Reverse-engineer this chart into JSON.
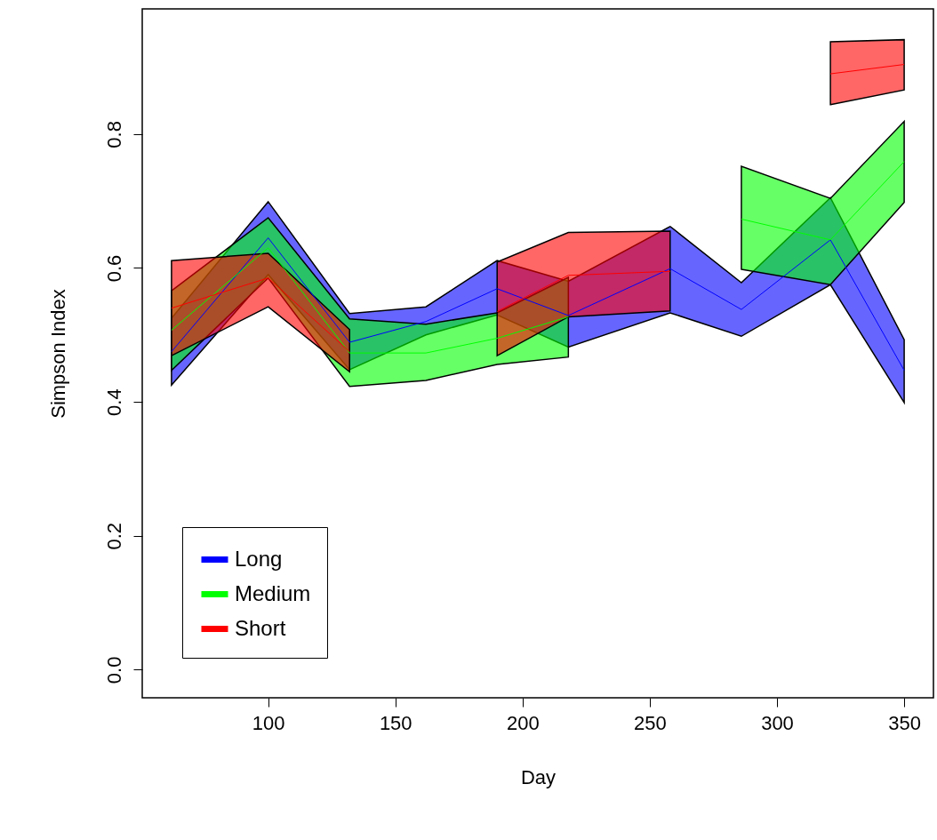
{
  "chart_data": {
    "type": "line",
    "xlabel": "Day",
    "ylabel": "Simpson Index",
    "x": [
      62,
      100,
      132,
      162,
      190,
      218,
      258,
      286,
      321,
      350
    ],
    "series": [
      {
        "name": "Long",
        "color": "#0000ff",
        "values": [
          0.475,
          0.645,
          0.489,
          0.52,
          0.569,
          0.529,
          0.599,
          0.538,
          0.642,
          0.447
        ],
        "lower": [
          0.425,
          0.59,
          0.448,
          0.5,
          0.53,
          0.482,
          0.533,
          0.498,
          0.575,
          0.399
        ],
        "upper": [
          0.525,
          0.699,
          0.532,
          0.542,
          0.611,
          0.58,
          0.662,
          0.578,
          0.705,
          0.493
        ]
      },
      {
        "name": "Medium",
        "color": "#00ff00",
        "values": [
          0.507,
          0.63,
          0.473,
          0.473,
          0.495,
          0.527,
          null,
          0.673,
          0.642,
          0.759
        ],
        "lower": [
          0.447,
          0.585,
          0.423,
          0.432,
          0.456,
          0.467,
          null,
          0.598,
          0.575,
          0.698
        ],
        "upper": [
          0.566,
          0.675,
          0.524,
          0.516,
          0.533,
          0.586,
          null,
          0.752,
          0.704,
          0.819
        ]
      },
      {
        "name": "Short",
        "color": "#ff0000",
        "values": [
          0.54,
          0.585,
          0.475,
          null,
          0.535,
          0.589,
          0.595,
          null,
          0.89,
          0.904
        ],
        "lower": [
          0.469,
          0.542,
          0.445,
          null,
          0.469,
          0.527,
          0.536,
          null,
          0.844,
          0.866
        ],
        "upper": [
          0.611,
          0.622,
          0.508,
          null,
          0.609,
          0.653,
          0.655,
          null,
          0.938,
          0.941
        ]
      }
    ],
    "xlim": [
      50.5,
      361.5
    ],
    "xticks": [
      100,
      150,
      200,
      250,
      300,
      350
    ],
    "ylim": [
      -0.042,
      0.987
    ],
    "yticks": [
      {
        "value": 0,
        "label": "0.0"
      },
      0.2,
      0.4,
      0.6,
      0.8
    ],
    "grid": false,
    "legend": "bottom left",
    "marker": "none",
    "line_style": "solid"
  }
}
